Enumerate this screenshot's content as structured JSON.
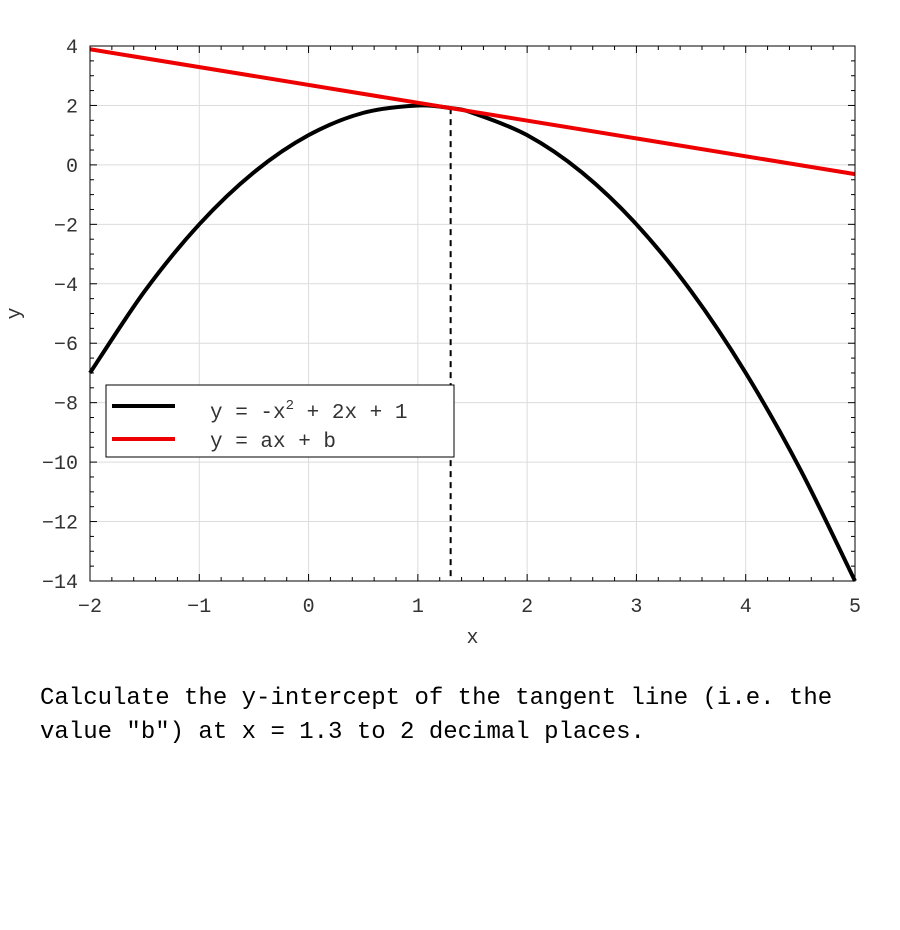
{
  "chart_data": {
    "type": "line",
    "xlabel": "x",
    "ylabel": "y",
    "xlim": [
      -2,
      5
    ],
    "ylim": [
      -14,
      4
    ],
    "xticks": [
      -2,
      -1,
      0,
      1,
      2,
      3,
      4,
      5
    ],
    "yticks": [
      4,
      2,
      0,
      -2,
      -4,
      -6,
      -8,
      -10,
      -12,
      -14
    ],
    "grid": true,
    "legend_position": "center-left",
    "series": [
      {
        "name_parts": [
          "y = -x",
          "2",
          " + 2x + 1"
        ],
        "color": "#000000",
        "x": [
          -2,
          -1.5,
          -1,
          -0.5,
          0,
          0.5,
          1,
          1.3,
          1.5,
          2,
          2.5,
          3,
          3.5,
          4,
          4.5,
          5
        ],
        "y": [
          -7,
          -4.25,
          -2,
          -0.25,
          1,
          1.75,
          2,
          1.91,
          1.75,
          1,
          -0.25,
          -2,
          -4.25,
          -7,
          -10.25,
          -14
        ]
      },
      {
        "name": "y = ax + b",
        "color": "#ee0000",
        "x": [
          -2,
          5
        ],
        "y": [
          3.89,
          -0.31
        ]
      }
    ],
    "marker_line": {
      "x": 1.3,
      "y_top": 1.91,
      "style": "dashed",
      "color": "#000000"
    }
  },
  "question": "Calculate the y-intercept of the tangent line (i.e. the value \"b\") at x = 1.3 to 2 decimal places."
}
